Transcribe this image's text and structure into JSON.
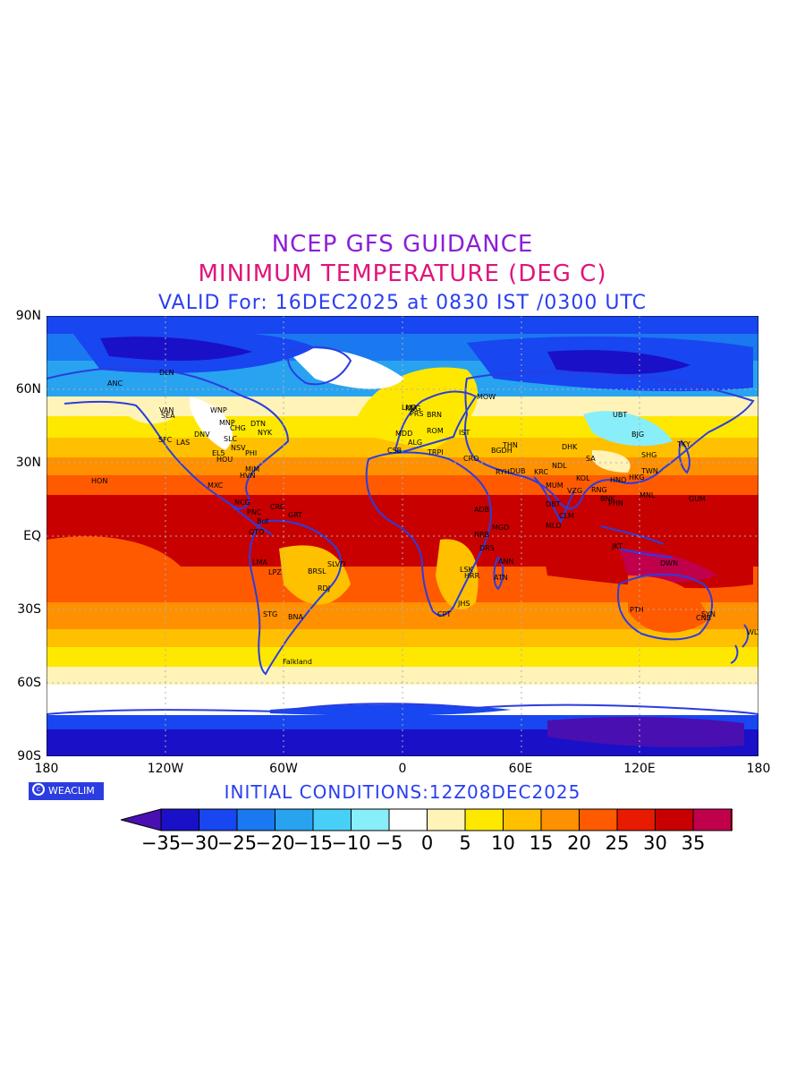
{
  "titles": {
    "line1": "NCEP GFS GUIDANCE",
    "line2": "MINIMUM TEMPERATURE (DEG C)",
    "line3": "VALID For: 16DEC2025 at 0830 IST /0300 UTC"
  },
  "axes": {
    "lat_labels": [
      "90N",
      "60N",
      "30N",
      "EQ",
      "30S",
      "60S",
      "90S"
    ],
    "lon_labels": [
      "180",
      "120W",
      "60W",
      "0",
      "60E",
      "120E",
      "180"
    ]
  },
  "initial_conditions": "INITIAL  CONDITIONS:12Z08DEC2025",
  "logo_text": "WEACLIM",
  "colorbar": {
    "labels": [
      "-35",
      "-30",
      "-25",
      "-20",
      "-15",
      "-10",
      "-5",
      "0",
      "5",
      "10",
      "15",
      "20",
      "25",
      "30",
      "35"
    ],
    "colors": [
      "#4a0fb0",
      "#1a10c8",
      "#1846f0",
      "#1a78f0",
      "#28a3f0",
      "#48cff8",
      "#88eefa",
      "#ffffff",
      "#fff3b8",
      "#ffe800",
      "#ffc000",
      "#ff9000",
      "#ff5a00",
      "#e81a00",
      "#c80000",
      "#c0004a",
      "#a00a0a"
    ]
  },
  "stations": [
    "ANC",
    "DLN",
    "VAN",
    "SEA",
    "WNP",
    "MNP",
    "CHG",
    "DTN",
    "NYK",
    "SFC",
    "LAS",
    "DNV",
    "SLC",
    "NSV",
    "PHI",
    "EL5",
    "HOU",
    "MIM",
    "HVN",
    "MXC",
    "HON",
    "NCG",
    "PNC",
    "CRC",
    "GRT",
    "Bot",
    "QTO",
    "LMA",
    "LPZ",
    "BRSL",
    "SLVD",
    "RDJ",
    "STG",
    "BNA",
    "Falkland",
    "MOW",
    "KNG",
    "LND",
    "PRS",
    "BRN",
    "ROM",
    "MDD",
    "IST",
    "ALG",
    "CSB",
    "TRPI",
    "CRO",
    "THN",
    "BGDH",
    "RYH",
    "DUB",
    "KRC",
    "DHK",
    "NDL",
    "SA",
    "KOL",
    "MUM",
    "VZG",
    "RNG",
    "BNK",
    "HNO",
    "HKG",
    "PHN",
    "MNL",
    "DBT",
    "CLM",
    "MLD",
    "ADB",
    "NRB",
    "DRS",
    "MGD",
    "ANN",
    "ATN",
    "HRR",
    "LSK",
    "JHS",
    "CPT",
    "UBT",
    "BJG",
    "TKY",
    "SHG",
    "TWN",
    "GUM",
    "JKT",
    "DWN",
    "PTH",
    "SYN",
    "CNB",
    "WLT"
  ]
}
